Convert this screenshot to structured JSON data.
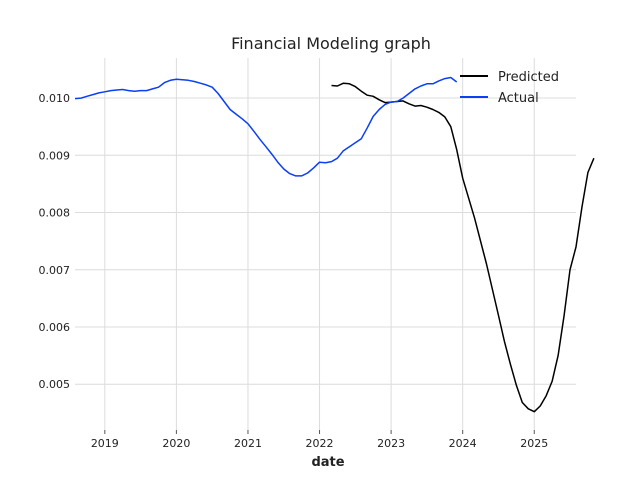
{
  "chart_data": {
    "type": "line",
    "title": "Financial Modeling graph",
    "xlabel": "date",
    "ylabel": "",
    "x_axis_type": "date",
    "xlim": [
      "2018-08-01",
      "2025-08-01"
    ],
    "ylim": [
      0.0042,
      0.0107
    ],
    "x_ticks": [
      "2019",
      "2020",
      "2021",
      "2022",
      "2023",
      "2024",
      "2025"
    ],
    "y_ticks": [
      "0.005",
      "0.006",
      "0.007",
      "0.008",
      "0.009",
      "0.010"
    ],
    "grid": true,
    "legend": {
      "placement": "top-right",
      "entries": [
        "Predicted",
        "Actual"
      ]
    },
    "series": [
      {
        "name": "Predicted",
        "color": "#000000",
        "points": [
          [
            "2022-03-01",
            0.01022
          ],
          [
            "2022-04-01",
            0.01021
          ],
          [
            "2022-05-01",
            0.01026
          ],
          [
            "2022-06-01",
            0.01025
          ],
          [
            "2022-07-01",
            0.0102
          ],
          [
            "2022-08-01",
            0.01012
          ],
          [
            "2022-09-01",
            0.01005
          ],
          [
            "2022-10-01",
            0.01003
          ],
          [
            "2022-11-01",
            0.00997
          ],
          [
            "2022-12-01",
            0.00992
          ],
          [
            "2023-01-01",
            0.00993
          ],
          [
            "2023-02-01",
            0.00994
          ],
          [
            "2023-03-01",
            0.00995
          ],
          [
            "2023-04-01",
            0.0099
          ],
          [
            "2023-05-01",
            0.00986
          ],
          [
            "2023-06-01",
            0.00987
          ],
          [
            "2023-07-01",
            0.00984
          ],
          [
            "2023-08-01",
            0.0098
          ],
          [
            "2023-09-01",
            0.00975
          ],
          [
            "2023-10-01",
            0.00967
          ],
          [
            "2023-11-01",
            0.0095
          ],
          [
            "2023-12-01",
            0.0091
          ],
          [
            "2024-01-01",
            0.0086
          ],
          [
            "2024-03-01",
            0.0079
          ],
          [
            "2024-05-01",
            0.0071
          ],
          [
            "2024-07-01",
            0.0062
          ],
          [
            "2024-08-01",
            0.00575
          ],
          [
            "2024-09-01",
            0.00535
          ],
          [
            "2024-10-01",
            0.00498
          ],
          [
            "2024-11-01",
            0.00468
          ],
          [
            "2024-12-01",
            0.00457
          ],
          [
            "2025-01-01",
            0.00452
          ],
          [
            "2025-02-01",
            0.00462
          ],
          [
            "2025-03-01",
            0.0048
          ],
          [
            "2025-04-01",
            0.00505
          ],
          [
            "2025-05-01",
            0.0055
          ],
          [
            "2025-06-01",
            0.0062
          ],
          [
            "2025-07-01",
            0.007
          ],
          [
            "2025-08-01",
            0.0074
          ],
          [
            "2025-09-01",
            0.0081
          ],
          [
            "2025-10-01",
            0.0087
          ],
          [
            "2025-11-01",
            0.00895
          ]
        ]
      },
      {
        "name": "Actual",
        "color": "#0a3ff5",
        "points": [
          [
            "2018-08-01",
            0.00999
          ],
          [
            "2018-09-01",
            0.01
          ],
          [
            "2018-10-01",
            0.01003
          ],
          [
            "2018-11-01",
            0.01006
          ],
          [
            "2018-12-01",
            0.01009
          ],
          [
            "2019-01-01",
            0.01011
          ],
          [
            "2019-02-01",
            0.01013
          ],
          [
            "2019-03-01",
            0.01014
          ],
          [
            "2019-04-01",
            0.01015
          ],
          [
            "2019-05-01",
            0.01013
          ],
          [
            "2019-06-01",
            0.01012
          ],
          [
            "2019-07-01",
            0.01013
          ],
          [
            "2019-08-01",
            0.01013
          ],
          [
            "2019-09-01",
            0.01016
          ],
          [
            "2019-10-01",
            0.01019
          ],
          [
            "2019-11-01",
            0.01027
          ],
          [
            "2019-12-01",
            0.01031
          ],
          [
            "2020-01-01",
            0.01033
          ],
          [
            "2020-02-01",
            0.01032
          ],
          [
            "2020-03-01",
            0.01031
          ],
          [
            "2020-04-01",
            0.01029
          ],
          [
            "2020-05-01",
            0.01026
          ],
          [
            "2020-06-01",
            0.01023
          ],
          [
            "2020-07-01",
            0.01019
          ],
          [
            "2020-08-01",
            0.01008
          ],
          [
            "2020-09-01",
            0.00994
          ],
          [
            "2020-10-01",
            0.0098
          ],
          [
            "2020-11-01",
            0.00972
          ],
          [
            "2020-12-01",
            0.00964
          ],
          [
            "2021-01-01",
            0.00955
          ],
          [
            "2021-02-01",
            0.00942
          ],
          [
            "2021-03-01",
            0.00928
          ],
          [
            "2021-04-01",
            0.00915
          ],
          [
            "2021-05-01",
            0.00902
          ],
          [
            "2021-06-01",
            0.00888
          ],
          [
            "2021-07-01",
            0.00876
          ],
          [
            "2021-08-01",
            0.00868
          ],
          [
            "2021-09-01",
            0.00864
          ],
          [
            "2021-10-01",
            0.00864
          ],
          [
            "2021-11-01",
            0.00869
          ],
          [
            "2021-12-01",
            0.00878
          ],
          [
            "2022-01-01",
            0.00888
          ],
          [
            "2022-02-01",
            0.00887
          ],
          [
            "2022-03-01",
            0.00889
          ],
          [
            "2022-04-01",
            0.00895
          ],
          [
            "2022-05-01",
            0.00908
          ],
          [
            "2022-06-01",
            0.00915
          ],
          [
            "2022-07-01",
            0.00922
          ],
          [
            "2022-08-01",
            0.00929
          ],
          [
            "2022-09-01",
            0.00948
          ],
          [
            "2022-10-01",
            0.00968
          ],
          [
            "2022-11-01",
            0.0098
          ],
          [
            "2022-12-01",
            0.00989
          ],
          [
            "2023-01-01",
            0.00993
          ],
          [
            "2023-02-01",
            0.00994
          ],
          [
            "2023-03-01",
            0.01
          ],
          [
            "2023-04-01",
            0.01008
          ],
          [
            "2023-05-01",
            0.01016
          ],
          [
            "2023-06-01",
            0.01021
          ],
          [
            "2023-07-01",
            0.01025
          ],
          [
            "2023-08-01",
            0.01025
          ],
          [
            "2023-09-01",
            0.0103
          ],
          [
            "2023-10-01",
            0.01034
          ],
          [
            "2023-11-01",
            0.01036
          ],
          [
            "2023-12-01",
            0.01028
          ]
        ]
      }
    ]
  }
}
